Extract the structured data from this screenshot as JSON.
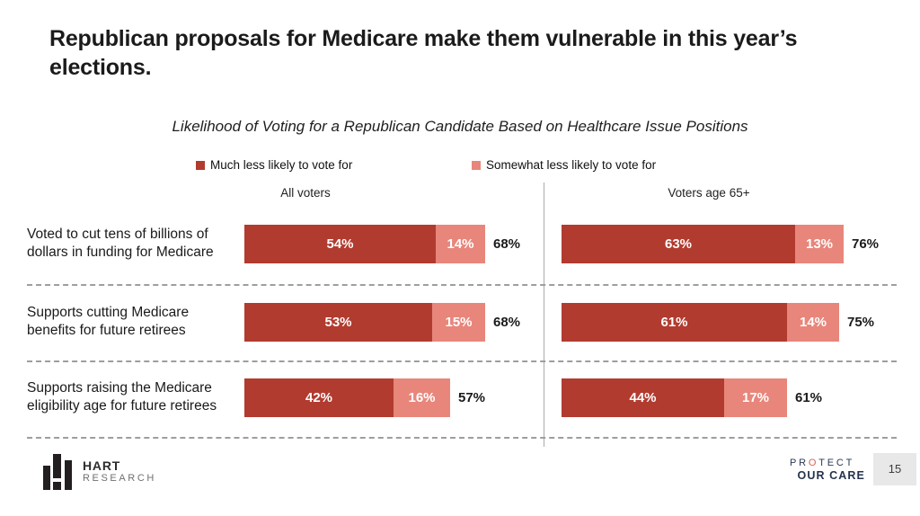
{
  "title": "Republican proposals for Medicare make them vulnerable in this year’s elections.",
  "chart_data": {
    "type": "bar",
    "orientation": "horizontal",
    "stacked": true,
    "title": "Likelihood of Voting for a Republican Candidate Based on Healthcare Issue Positions",
    "legend_position": "top",
    "xlim": [
      0,
      100
    ],
    "value_suffix": "%",
    "legend": [
      {
        "name": "Much less likely to vote for",
        "color": "#B23B2F"
      },
      {
        "name": "Somewhat less likely to vote for",
        "color": "#E8867B"
      }
    ],
    "categories": [
      "Voted to cut tens of billions of\ndollars in funding for Medicare",
      "Supports cutting Medicare\nbenefits for future retirees",
      "Supports raising the Medicare\neligibility age for future retirees"
    ],
    "panels": [
      {
        "label": "All voters",
        "series": [
          {
            "name": "Much less likely to vote for",
            "values": [
              54,
              53,
              42
            ]
          },
          {
            "name": "Somewhat less likely to vote for",
            "values": [
              14,
              15,
              16
            ]
          }
        ],
        "totals": [
          68,
          68,
          57
        ]
      },
      {
        "label": "Voters age 65+",
        "series": [
          {
            "name": "Much less likely to vote for",
            "values": [
              63,
              61,
              44
            ]
          },
          {
            "name": "Somewhat less likely to vote for",
            "values": [
              13,
              14,
              17
            ]
          }
        ],
        "totals": [
          76,
          75,
          61
        ]
      }
    ]
  },
  "footer": {
    "hart": {
      "name": "HART",
      "sub": "RESEARCH"
    },
    "protect_our_care": {
      "pre": "PR",
      "o": "O",
      "post": "TECT",
      "line2": "OUR CARE"
    },
    "page_number": "15"
  }
}
